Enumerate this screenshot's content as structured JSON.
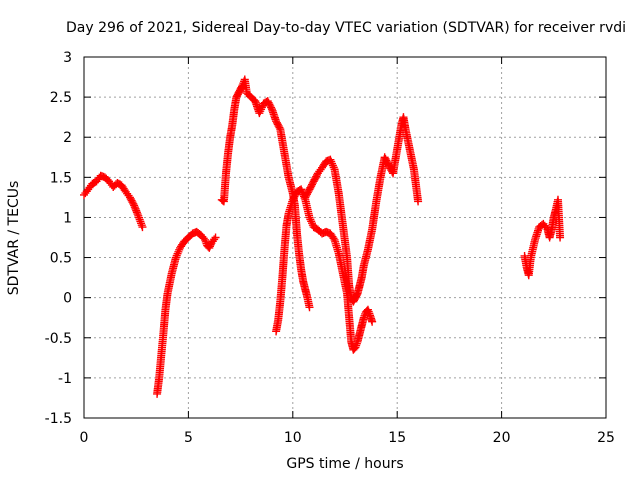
{
  "chart_data": {
    "type": "scatter",
    "title": "Day 296 of 2021, Sidereal Day-to-day VTEC variation (SDTVAR) for receiver rvdi",
    "xlabel": "GPS time / hours",
    "ylabel": "SDTVAR / TECUs",
    "xlim": [
      0,
      25
    ],
    "ylim": [
      -1.5,
      3
    ],
    "xticks": [
      "0",
      "5",
      "10",
      "15",
      "20",
      "25"
    ],
    "yticks": [
      "-1.5",
      "-1",
      "-0.5",
      "0",
      "0.5",
      "1",
      "1.5",
      "2",
      "2.5",
      "3"
    ],
    "grid": true,
    "marker": "+",
    "color": "#ff0000",
    "series": [
      {
        "points": [
          [
            0.0,
            1.28
          ],
          [
            0.2,
            1.35
          ],
          [
            0.4,
            1.42
          ],
          [
            0.6,
            1.45
          ],
          [
            0.8,
            1.52
          ],
          [
            1.0,
            1.5
          ],
          [
            1.2,
            1.45
          ],
          [
            1.4,
            1.38
          ],
          [
            1.6,
            1.43
          ],
          [
            1.8,
            1.4
          ],
          [
            2.0,
            1.32
          ],
          [
            2.2,
            1.25
          ],
          [
            2.4,
            1.15
          ],
          [
            2.6,
            1.02
          ],
          [
            2.8,
            0.88
          ]
        ]
      },
      {
        "points": [
          [
            3.5,
            -1.2
          ],
          [
            3.6,
            -1.0
          ],
          [
            3.7,
            -0.72
          ],
          [
            3.8,
            -0.45
          ],
          [
            3.9,
            -0.15
          ],
          [
            4.0,
            0.05
          ],
          [
            4.2,
            0.3
          ],
          [
            4.4,
            0.5
          ],
          [
            4.6,
            0.62
          ],
          [
            4.8,
            0.7
          ],
          [
            5.0,
            0.75
          ],
          [
            5.2,
            0.8
          ],
          [
            5.4,
            0.82
          ],
          [
            5.6,
            0.78
          ],
          [
            5.8,
            0.72
          ],
          [
            5.9,
            0.65
          ],
          [
            6.0,
            0.62
          ],
          [
            6.1,
            0.68
          ],
          [
            6.3,
            0.75
          ]
        ]
      },
      {
        "points": [
          [
            6.6,
            1.22
          ],
          [
            6.7,
            1.2
          ],
          [
            6.8,
            1.55
          ],
          [
            6.9,
            1.8
          ],
          [
            7.0,
            2.0
          ],
          [
            7.1,
            2.15
          ],
          [
            7.2,
            2.35
          ],
          [
            7.3,
            2.5
          ],
          [
            7.4,
            2.55
          ],
          [
            7.5,
            2.6
          ],
          [
            7.6,
            2.65
          ],
          [
            7.7,
            2.72
          ],
          [
            7.8,
            2.55
          ],
          [
            8.0,
            2.5
          ],
          [
            8.2,
            2.45
          ],
          [
            8.4,
            2.3
          ],
          [
            8.6,
            2.42
          ],
          [
            8.8,
            2.45
          ],
          [
            9.0,
            2.35
          ],
          [
            9.2,
            2.2
          ],
          [
            9.4,
            2.1
          ],
          [
            9.6,
            1.8
          ],
          [
            9.8,
            1.5
          ],
          [
            10.0,
            1.3
          ],
          [
            10.1,
            1.15
          ],
          [
            10.2,
            0.8
          ],
          [
            10.3,
            0.55
          ],
          [
            10.4,
            0.35
          ],
          [
            10.5,
            0.2
          ],
          [
            10.6,
            0.1
          ],
          [
            10.7,
            0.0
          ],
          [
            10.8,
            -0.12
          ]
        ]
      },
      {
        "points": [
          [
            9.2,
            -0.42
          ],
          [
            9.3,
            -0.28
          ],
          [
            9.4,
            -0.05
          ],
          [
            9.5,
            0.25
          ],
          [
            9.6,
            0.6
          ],
          [
            9.7,
            0.9
          ],
          [
            9.8,
            1.05
          ],
          [
            10.0,
            1.22
          ],
          [
            10.2,
            1.32
          ],
          [
            10.4,
            1.35
          ],
          [
            10.6,
            1.22
          ],
          [
            10.8,
            1.0
          ],
          [
            11.0,
            0.88
          ],
          [
            11.2,
            0.85
          ],
          [
            11.4,
            0.8
          ],
          [
            11.6,
            0.82
          ],
          [
            11.8,
            0.8
          ],
          [
            12.0,
            0.72
          ],
          [
            12.2,
            0.55
          ],
          [
            12.4,
            0.3
          ],
          [
            12.6,
            0.05
          ],
          [
            12.7,
            -0.25
          ],
          [
            12.8,
            -0.55
          ],
          [
            12.9,
            -0.65
          ],
          [
            13.0,
            -0.62
          ],
          [
            13.1,
            -0.55
          ],
          [
            13.2,
            -0.45
          ],
          [
            13.3,
            -0.35
          ],
          [
            13.4,
            -0.25
          ],
          [
            13.5,
            -0.18
          ],
          [
            13.6,
            -0.15
          ],
          [
            13.7,
            -0.22
          ],
          [
            13.8,
            -0.3
          ]
        ]
      },
      {
        "points": [
          [
            10.6,
            1.25
          ],
          [
            10.8,
            1.35
          ],
          [
            11.0,
            1.45
          ],
          [
            11.2,
            1.55
          ],
          [
            11.4,
            1.62
          ],
          [
            11.6,
            1.7
          ],
          [
            11.8,
            1.72
          ],
          [
            12.0,
            1.6
          ],
          [
            12.2,
            1.3
          ],
          [
            12.4,
            0.9
          ],
          [
            12.6,
            0.5
          ],
          [
            12.7,
            0.15
          ],
          [
            12.8,
            0.0
          ],
          [
            12.9,
            -0.05
          ],
          [
            13.0,
            0.0
          ],
          [
            13.1,
            0.05
          ],
          [
            13.2,
            0.15
          ],
          [
            13.3,
            0.25
          ],
          [
            13.4,
            0.4
          ],
          [
            13.6,
            0.6
          ],
          [
            13.8,
            0.85
          ],
          [
            14.0,
            1.2
          ],
          [
            14.2,
            1.5
          ],
          [
            14.4,
            1.75
          ],
          [
            14.6,
            1.65
          ],
          [
            14.8,
            1.55
          ],
          [
            15.0,
            1.85
          ],
          [
            15.2,
            2.15
          ],
          [
            15.3,
            2.25
          ],
          [
            15.4,
            2.1
          ],
          [
            15.6,
            1.85
          ],
          [
            15.8,
            1.6
          ],
          [
            16.0,
            1.2
          ]
        ]
      },
      {
        "points": [
          [
            21.1,
            0.52
          ],
          [
            21.2,
            0.38
          ],
          [
            21.3,
            0.28
          ],
          [
            21.4,
            0.5
          ],
          [
            21.6,
            0.72
          ],
          [
            21.8,
            0.88
          ],
          [
            22.0,
            0.92
          ],
          [
            22.2,
            0.85
          ],
          [
            22.3,
            0.75
          ],
          [
            22.4,
            0.85
          ],
          [
            22.5,
            1.0
          ],
          [
            22.6,
            1.1
          ],
          [
            22.7,
            1.22
          ],
          [
            22.8,
            0.75
          ]
        ]
      }
    ]
  }
}
